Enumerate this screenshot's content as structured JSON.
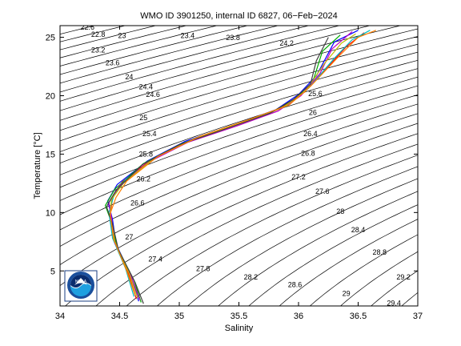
{
  "chart_data": {
    "type": "scatter",
    "title": "WMO ID 3901250, internal ID 6827, 06−Feb−2024",
    "xlabel": "Salinity",
    "ylabel": "Temperature [°C]",
    "xlim": [
      34,
      37
    ],
    "ylim": [
      2,
      26
    ],
    "xticks": [
      34,
      34.5,
      35,
      35.5,
      36,
      36.5,
      37
    ],
    "xtick_labels": [
      "34",
      "34.5",
      "35",
      "35.5",
      "36",
      "36.5",
      "37"
    ],
    "yticks": [
      5,
      10,
      15,
      20,
      25
    ],
    "ytick_labels": [
      "5",
      "10",
      "15",
      "20",
      "25"
    ],
    "grid": false,
    "density_contours": {
      "levels": [
        22.4,
        22.6,
        22.8,
        23,
        23.2,
        23.4,
        23.6,
        23.8,
        24,
        24.2,
        24.4,
        24.6,
        24.8,
        25,
        25.2,
        25.4,
        25.6,
        25.8,
        26,
        26.2,
        26.4,
        26.6,
        26.8,
        27,
        27.2,
        27.4,
        27.6,
        27.8,
        28,
        28.2,
        28.4,
        28.6,
        28.8,
        29,
        29.2,
        29.4
      ],
      "labels": [
        {
          "text": "22.4",
          "s": 34.05,
          "t": 26.0
        },
        {
          "text": "22.6",
          "s": 34.23,
          "t": 25.65
        },
        {
          "text": "22.8",
          "s": 34.32,
          "t": 25.05
        },
        {
          "text": "23",
          "s": 34.52,
          "t": 24.95
        },
        {
          "text": "23.2",
          "s": 34.32,
          "t": 23.7
        },
        {
          "text": "23.4",
          "s": 35.07,
          "t": 24.95
        },
        {
          "text": "23.6",
          "s": 34.44,
          "t": 22.6
        },
        {
          "text": "23.8",
          "s": 35.45,
          "t": 24.75
        },
        {
          "text": "24",
          "s": 34.58,
          "t": 21.4
        },
        {
          "text": "24.2",
          "s": 35.9,
          "t": 24.3
        },
        {
          "text": "24.4",
          "s": 34.72,
          "t": 20.55
        },
        {
          "text": "24.6",
          "s": 34.78,
          "t": 19.9
        },
        {
          "text": "25",
          "s": 34.7,
          "t": 17.9
        },
        {
          "text": "25.4",
          "s": 34.75,
          "t": 16.55
        },
        {
          "text": "25.6",
          "s": 36.14,
          "t": 19.95
        },
        {
          "text": "26",
          "s": 36.12,
          "t": 18.35
        },
        {
          "text": "25.8",
          "s": 34.72,
          "t": 14.8
        },
        {
          "text": "26.4",
          "s": 36.1,
          "t": 16.55
        },
        {
          "text": "26.2",
          "s": 34.7,
          "t": 12.65
        },
        {
          "text": "26.8",
          "s": 36.08,
          "t": 14.85
        },
        {
          "text": "27.2",
          "s": 36.0,
          "t": 12.85
        },
        {
          "text": "26.6",
          "s": 34.65,
          "t": 10.6
        },
        {
          "text": "27.6",
          "s": 36.2,
          "t": 11.6
        },
        {
          "text": "28",
          "s": 36.35,
          "t": 9.9
        },
        {
          "text": "27",
          "s": 34.58,
          "t": 7.7
        },
        {
          "text": "28.4",
          "s": 36.5,
          "t": 8.3
        },
        {
          "text": "27.4",
          "s": 34.8,
          "t": 5.8
        },
        {
          "text": "28.8",
          "s": 36.68,
          "t": 6.4
        },
        {
          "text": "27.8",
          "s": 35.2,
          "t": 5.0
        },
        {
          "text": "28.2",
          "s": 35.6,
          "t": 4.25
        },
        {
          "text": "29.2",
          "s": 36.88,
          "t": 4.25
        },
        {
          "text": "28.6",
          "s": 35.97,
          "t": 3.6
        },
        {
          "text": "29",
          "s": 36.4,
          "t": 2.85
        },
        {
          "text": "29.4",
          "s": 36.8,
          "t": 2.05
        }
      ]
    },
    "profiles": [
      {
        "color": "#0000ff",
        "points": [
          [
            34.66,
            2.4
          ],
          [
            34.6,
            4.5
          ],
          [
            34.47,
            7.3
          ],
          [
            34.44,
            9.4
          ],
          [
            34.4,
            11.0
          ],
          [
            34.48,
            12.4
          ],
          [
            34.73,
            14.4
          ],
          [
            35.05,
            16.1
          ],
          [
            35.46,
            17.5
          ],
          [
            35.81,
            18.8
          ],
          [
            36.0,
            20.1
          ],
          [
            36.15,
            21.7
          ],
          [
            36.3,
            24.6
          ],
          [
            36.5,
            25.6
          ]
        ]
      },
      {
        "color": "#ff0000",
        "points": [
          [
            34.64,
            2.6
          ],
          [
            34.57,
            4.9
          ],
          [
            34.45,
            7.6
          ],
          [
            34.42,
            9.8
          ],
          [
            34.44,
            11.2
          ],
          [
            34.52,
            12.6
          ],
          [
            34.76,
            14.5
          ],
          [
            35.1,
            16.2
          ],
          [
            35.5,
            17.6
          ],
          [
            35.85,
            18.9
          ],
          [
            36.05,
            20.3
          ],
          [
            36.25,
            22.5
          ],
          [
            36.4,
            24.2
          ],
          [
            36.55,
            25.4
          ]
        ]
      },
      {
        "color": "#00aa00",
        "points": [
          [
            34.68,
            2.3
          ],
          [
            34.62,
            4.2
          ],
          [
            34.48,
            7.0
          ],
          [
            34.43,
            9.2
          ],
          [
            34.38,
            10.6
          ],
          [
            34.46,
            12.0
          ],
          [
            34.7,
            14.2
          ],
          [
            35.02,
            15.9
          ],
          [
            35.42,
            17.3
          ],
          [
            35.78,
            18.6
          ],
          [
            35.98,
            19.8
          ],
          [
            36.12,
            21.2
          ],
          [
            36.2,
            23.8
          ],
          [
            36.35,
            25.2
          ]
        ]
      },
      {
        "color": "#00bfbf",
        "points": [
          [
            34.62,
            2.8
          ],
          [
            34.55,
            5.2
          ],
          [
            34.44,
            7.8
          ],
          [
            34.41,
            10.0
          ],
          [
            34.45,
            11.4
          ],
          [
            34.55,
            12.8
          ],
          [
            34.8,
            14.7
          ],
          [
            35.15,
            16.4
          ],
          [
            35.55,
            17.8
          ],
          [
            35.9,
            19.1
          ],
          [
            36.08,
            20.6
          ],
          [
            36.3,
            23.2
          ],
          [
            36.45,
            24.8
          ],
          [
            36.6,
            25.6
          ]
        ]
      },
      {
        "color": "#bf00bf",
        "points": [
          [
            34.67,
            2.5
          ],
          [
            34.59,
            4.7
          ],
          [
            34.46,
            7.4
          ],
          [
            34.43,
            9.6
          ],
          [
            34.41,
            10.9
          ],
          [
            34.5,
            12.3
          ],
          [
            34.74,
            14.3
          ],
          [
            35.07,
            16.0
          ],
          [
            35.48,
            17.4
          ],
          [
            35.83,
            18.7
          ],
          [
            36.02,
            20.0
          ],
          [
            36.18,
            21.9
          ],
          [
            36.28,
            24.0
          ],
          [
            36.45,
            25.5
          ]
        ]
      },
      {
        "color": "#bfbf00",
        "points": [
          [
            34.65,
            2.7
          ],
          [
            34.58,
            4.8
          ],
          [
            34.46,
            7.5
          ],
          [
            34.42,
            9.7
          ],
          [
            34.43,
            11.1
          ],
          [
            34.53,
            12.5
          ],
          [
            34.78,
            14.6
          ],
          [
            35.12,
            16.3
          ],
          [
            35.52,
            17.7
          ],
          [
            35.87,
            19.0
          ],
          [
            36.06,
            20.4
          ],
          [
            36.22,
            22.8
          ],
          [
            36.36,
            24.5
          ],
          [
            36.48,
            25.3
          ]
        ]
      },
      {
        "color": "#404040",
        "points": [
          [
            34.7,
            2.2
          ],
          [
            34.63,
            4.0
          ],
          [
            34.49,
            6.8
          ],
          [
            34.44,
            9.0
          ],
          [
            34.39,
            10.5
          ],
          [
            34.47,
            11.9
          ],
          [
            34.69,
            14.1
          ],
          [
            35.0,
            15.8
          ],
          [
            35.4,
            17.2
          ],
          [
            35.76,
            18.5
          ],
          [
            35.96,
            19.7
          ],
          [
            36.1,
            21.0
          ],
          [
            36.15,
            23.0
          ],
          [
            36.25,
            25.0
          ]
        ]
      },
      {
        "color": "#ff8000",
        "points": [
          [
            34.63,
            2.9
          ],
          [
            34.56,
            5.0
          ],
          [
            34.45,
            7.7
          ],
          [
            34.42,
            9.9
          ],
          [
            34.47,
            11.3
          ],
          [
            34.56,
            12.7
          ],
          [
            34.82,
            14.8
          ],
          [
            35.17,
            16.5
          ],
          [
            35.57,
            17.9
          ],
          [
            35.92,
            19.2
          ],
          [
            36.1,
            20.8
          ],
          [
            36.35,
            23.5
          ],
          [
            36.5,
            25.0
          ],
          [
            36.65,
            25.6
          ]
        ]
      }
    ]
  },
  "logo": {
    "text": "NOAA",
    "ring_color": "#1a4f9c",
    "sky_color": "#0a2d6e",
    "water_color": "#1ea0e0"
  }
}
